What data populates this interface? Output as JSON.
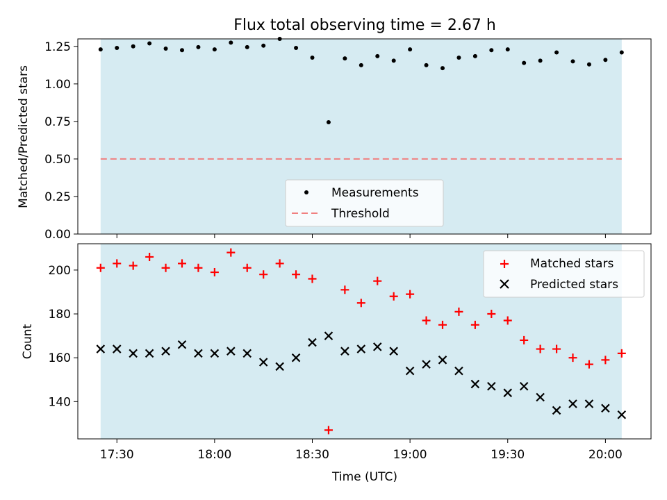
{
  "chart_data": {
    "title": "Flux total observing time = 2.67 h",
    "xlabel": "Time (UTC)",
    "x_minutes_from_midnight": [
      1045,
      1050,
      1055,
      1060,
      1065,
      1070,
      1075,
      1080,
      1085,
      1090,
      1095,
      1100,
      1105,
      1110,
      1115,
      1120,
      1125,
      1130,
      1135,
      1140,
      1145,
      1150,
      1155,
      1160,
      1165,
      1170,
      1175,
      1180,
      1185,
      1190,
      1195,
      1200,
      1205
    ],
    "xlim_minutes": [
      1038,
      1214
    ],
    "xticks": [
      {
        "minutes": 1050,
        "label": "17:30"
      },
      {
        "minutes": 1080,
        "label": "18:00"
      },
      {
        "minutes": 1110,
        "label": "18:30"
      },
      {
        "minutes": 1140,
        "label": "19:00"
      },
      {
        "minutes": 1170,
        "label": "19:30"
      },
      {
        "minutes": 1200,
        "label": "20:00"
      }
    ],
    "observing_span_minutes": [
      1045,
      1205
    ],
    "span_color": "#add8e6",
    "top": {
      "type": "scatter",
      "ylabel": "Matched/Predicted stars",
      "ylim": [
        0,
        1.3
      ],
      "yticks": [
        "0.00",
        "0.25",
        "0.50",
        "0.75",
        "1.00",
        "1.25"
      ],
      "threshold": 0.5,
      "threshold_color": "#f08080",
      "legend_position": "lower-center",
      "series": [
        {
          "name": "Measurements",
          "color": "#000000",
          "values": [
            1.23,
            1.24,
            1.25,
            1.27,
            1.235,
            1.225,
            1.245,
            1.23,
            1.275,
            1.245,
            1.255,
            1.3,
            1.24,
            1.175,
            0.745,
            1.17,
            1.125,
            1.185,
            1.155,
            1.23,
            1.125,
            1.105,
            1.175,
            1.185,
            1.225,
            1.23,
            1.14,
            1.155,
            1.21,
            1.15,
            1.13,
            1.16,
            1.21
          ]
        }
      ],
      "legend": [
        "Measurements",
        "Threshold"
      ]
    },
    "bottom": {
      "type": "scatter",
      "ylabel": "Count",
      "ylim": [
        123,
        212
      ],
      "yticks": [
        140,
        160,
        180,
        200
      ],
      "legend_position": "upper-right",
      "series": [
        {
          "name": "Matched stars",
          "marker": "+",
          "color": "#ff0000",
          "values": [
            201,
            203,
            202,
            206,
            201,
            203,
            201,
            199,
            208,
            201,
            198,
            203,
            198,
            196,
            127,
            191,
            185,
            195,
            188,
            189,
            177,
            175,
            181,
            175,
            180,
            177,
            168,
            164,
            164,
            160,
            157,
            159,
            162
          ]
        },
        {
          "name": "Predicted stars",
          "marker": "x",
          "color": "#000000",
          "values": [
            164,
            164,
            162,
            162,
            163,
            166,
            162,
            162,
            163,
            162,
            158,
            156,
            160,
            167,
            170,
            163,
            164,
            165,
            163,
            154,
            157,
            159,
            154,
            148,
            147,
            144,
            147,
            142,
            136,
            139,
            139,
            137,
            134
          ]
        }
      ]
    }
  }
}
